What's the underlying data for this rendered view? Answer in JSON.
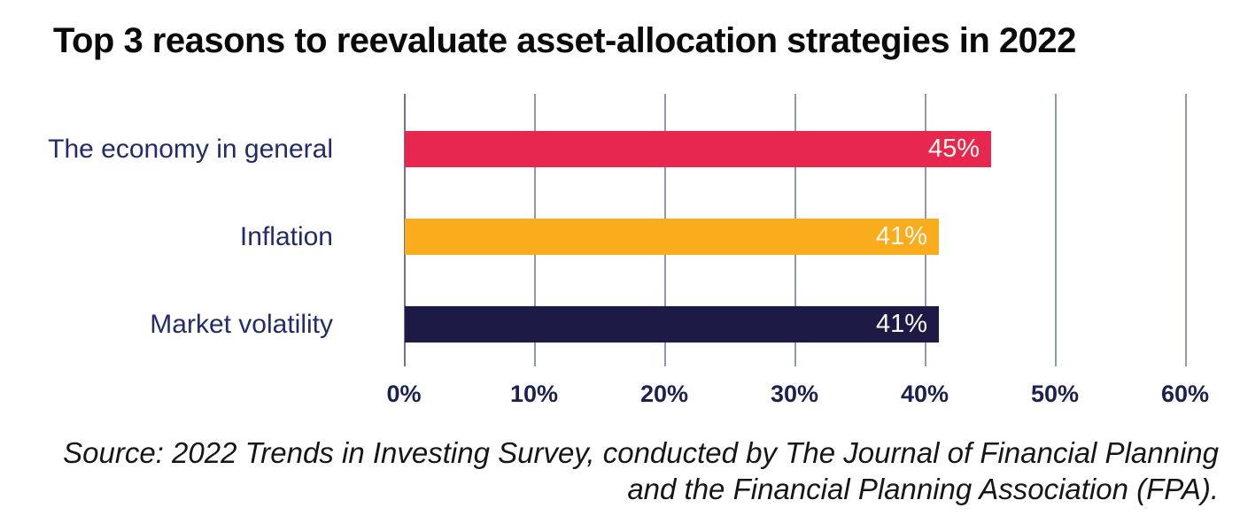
{
  "chart_data": {
    "type": "bar",
    "orientation": "horizontal",
    "title": "Top 3 reasons to reevaluate asset-allocation strategies in 2022",
    "categories": [
      "The economy in general",
      "Inflation",
      "Market volatility"
    ],
    "values": [
      45,
      41,
      41
    ],
    "value_labels": [
      "45%",
      "41%",
      "41%"
    ],
    "bar_colors": [
      "#e8274f",
      "#f9ad1d",
      "#1d1b45"
    ],
    "x_ticks": [
      "0%",
      "10%",
      "20%",
      "30%",
      "40%",
      "50%",
      "60%"
    ],
    "xlim": [
      0,
      60
    ],
    "xlabel": "",
    "ylabel": "",
    "grid": "vertical",
    "legend": "none",
    "colors": {
      "title": "#0a0a0a",
      "category_label": "#222c68",
      "tick_label": "#1b2150",
      "gridline": "#9397ab",
      "bar_value_text": "#faf8f1",
      "background": "#ffffff"
    }
  },
  "source": {
    "line1": "Source: 2022 Trends in Investing Survey, conducted by The Journal of Financial Planning",
    "line2": "and the Financial Planning Association (FPA).",
    "full": "Source: 2022 Trends in Investing Survey, conducted by The Journal of Financial Planning and the Financial Planning Association (FPA)."
  }
}
